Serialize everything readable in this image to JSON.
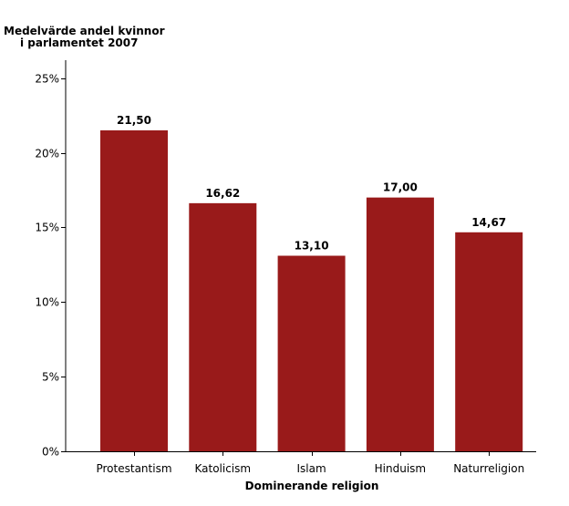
{
  "chart_data": {
    "type": "bar",
    "title_lines": [
      "Medelvärde andel kvinnor",
      "i parlamentet 2007"
    ],
    "xlabel": "Dominerande religion",
    "ylabel": "",
    "categories": [
      "Protestantism",
      "Katolicism",
      "Islam",
      "Hinduism",
      "Naturreligion"
    ],
    "values": [
      21.5,
      16.62,
      13.1,
      17.0,
      14.67
    ],
    "data_labels": [
      "21,50",
      "16,62",
      "13,10",
      "17,00",
      "14,67"
    ],
    "y_ticks": [
      0,
      5,
      10,
      15,
      20,
      25
    ],
    "y_tick_labels": [
      "0%",
      "5%",
      "10%",
      "15%",
      "20%",
      "25%"
    ],
    "ylim": [
      0,
      26.2
    ],
    "grid": false,
    "legend": "none",
    "bar_color": "#991a1a"
  }
}
